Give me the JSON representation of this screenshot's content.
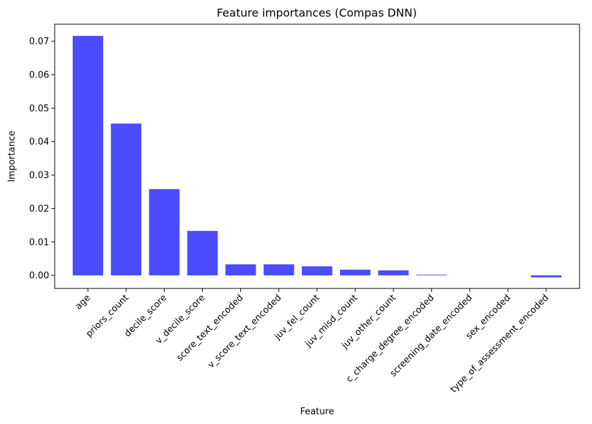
{
  "chart_data": {
    "type": "bar",
    "title": "Feature importances (Compas DNN)",
    "xlabel": "Feature",
    "ylabel": "Importance",
    "categories": [
      "age",
      "priors_count",
      "decile_score",
      "v_decile_score",
      "score_text_encoded",
      "v_score_text_encoded",
      "juv_fel_count",
      "juv_misd_count",
      "juv_other_count",
      "c_charge_degree_encoded",
      "screening_date_encoded",
      "sex_encoded",
      "type_of_assessment_encoded"
    ],
    "values": [
      0.0716,
      0.0454,
      0.0258,
      0.0133,
      0.0033,
      0.0033,
      0.0027,
      0.0017,
      0.0015,
      0.0002,
      0.0,
      0.0,
      -0.0006
    ],
    "ylim": [
      -0.0039,
      0.0751
    ],
    "yticks": [
      "0.00",
      "0.01",
      "0.02",
      "0.03",
      "0.04",
      "0.05",
      "0.06",
      "0.07"
    ],
    "bar_color": "#4b4bff",
    "grid": false,
    "legend": false
  }
}
